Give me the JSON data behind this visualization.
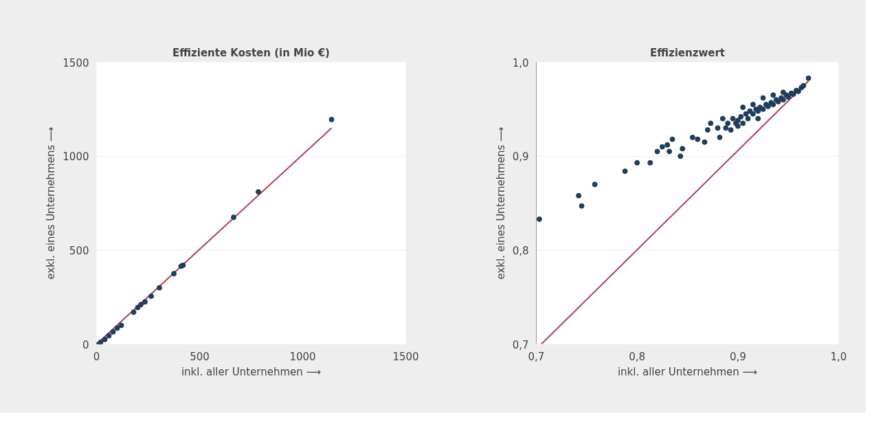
{
  "chart_data": [
    {
      "type": "scatter",
      "title": "Effiziente Kosten (in Mio €)",
      "xlabel": "inkl. aller Unternehmen ⟶",
      "ylabel": "exkl. eines Unternehmens ⟶",
      "xlim": [
        0,
        1500
      ],
      "ylim": [
        0,
        1500
      ],
      "xticks": [
        0,
        500,
        1000,
        1500
      ],
      "yticks": [
        0,
        500,
        1000,
        1500
      ],
      "grid": "y",
      "marker": "circle",
      "series": [
        {
          "type": "line",
          "marker": "none",
          "color": "#b04050",
          "x": [
            0,
            1140
          ],
          "values": [
            0,
            1150
          ]
        },
        {
          "color": "#1f3d5c",
          "x": [
            10,
            20,
            40,
            60,
            80,
            100,
            120,
            180,
            200,
            215,
            235,
            265,
            305,
            375,
            410,
            420,
            665,
            785,
            1140
          ],
          "values": [
            0,
            10,
            25,
            45,
            65,
            85,
            100,
            170,
            195,
            210,
            225,
            255,
            300,
            375,
            415,
            420,
            675,
            810,
            1195
          ]
        }
      ]
    },
    {
      "type": "scatter",
      "title": "Effizienzwert",
      "xlabel": "inkl. aller Unternehmen ⟶",
      "ylabel": "exkl. eines Unternehmens ⟶",
      "xlim": [
        0.7,
        1.0
      ],
      "ylim": [
        0.7,
        1.0
      ],
      "xticks": [
        {
          "value": 0.7,
          "label": "0,7"
        },
        {
          "value": 0.8,
          "label": "0,8"
        },
        {
          "value": 0.9,
          "label": "0,9"
        },
        {
          "value": 1.0,
          "label": "1,0"
        }
      ],
      "yticks": [
        {
          "value": 0.7,
          "label": "0,7"
        },
        {
          "value": 0.8,
          "label": "0,8"
        },
        {
          "value": 0.9,
          "label": "0,9"
        },
        {
          "value": 1.0,
          "label": "1,0"
        }
      ],
      "grid": "y",
      "marker": "circle",
      "series": [
        {
          "type": "line",
          "marker": "none",
          "color": "#b04050",
          "x": [
            0.705,
            0.97
          ],
          "values": [
            0.7,
            0.98
          ]
        },
        {
          "color": "#1f3d5c",
          "x": [
            0.703,
            0.742,
            0.745,
            0.758,
            0.788,
            0.8,
            0.813,
            0.82,
            0.825,
            0.83,
            0.832,
            0.835,
            0.843,
            0.845,
            0.855,
            0.86,
            0.867,
            0.87,
            0.873,
            0.88,
            0.882,
            0.885,
            0.888,
            0.89,
            0.893,
            0.895,
            0.898,
            0.9,
            0.903,
            0.905,
            0.908,
            0.91,
            0.912,
            0.915,
            0.918,
            0.92,
            0.922,
            0.925,
            0.928,
            0.93,
            0.933,
            0.935,
            0.938,
            0.94,
            0.943,
            0.945,
            0.948,
            0.95,
            0.953,
            0.955,
            0.958,
            0.96,
            0.963,
            0.965,
            0.97,
            0.905,
            0.915,
            0.925,
            0.935,
            0.945,
            0.9,
            0.92
          ],
          "values": [
            0.833,
            0.858,
            0.847,
            0.87,
            0.884,
            0.893,
            0.893,
            0.905,
            0.91,
            0.912,
            0.905,
            0.918,
            0.9,
            0.908,
            0.92,
            0.918,
            0.915,
            0.928,
            0.935,
            0.93,
            0.92,
            0.94,
            0.93,
            0.935,
            0.928,
            0.94,
            0.935,
            0.938,
            0.942,
            0.935,
            0.945,
            0.94,
            0.948,
            0.945,
            0.95,
            0.948,
            0.952,
            0.95,
            0.955,
            0.953,
            0.957,
            0.955,
            0.96,
            0.958,
            0.962,
            0.96,
            0.965,
            0.963,
            0.967,
            0.966,
            0.97,
            0.969,
            0.973,
            0.975,
            0.983,
            0.952,
            0.955,
            0.962,
            0.965,
            0.968,
            0.932,
            0.94
          ]
        }
      ]
    }
  ]
}
